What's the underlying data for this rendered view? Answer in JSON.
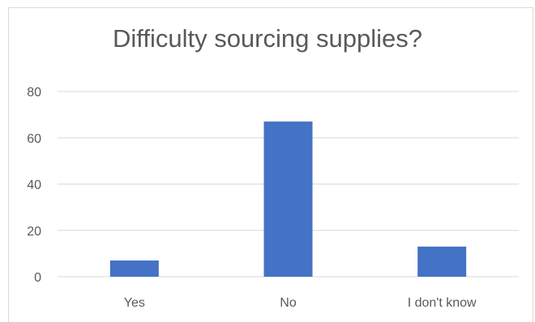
{
  "chart_data": {
    "type": "bar",
    "title": "Difficulty sourcing supplies?",
    "categories": [
      "Yes",
      "No",
      "I don't know"
    ],
    "values": [
      7,
      67,
      13
    ],
    "ylim": [
      0,
      80
    ],
    "yticks": [
      0,
      20,
      40,
      60,
      80
    ],
    "grid": true,
    "bar_color": "#4472C4",
    "grid_color": "#d9d9d9",
    "text_color": "#595959"
  }
}
